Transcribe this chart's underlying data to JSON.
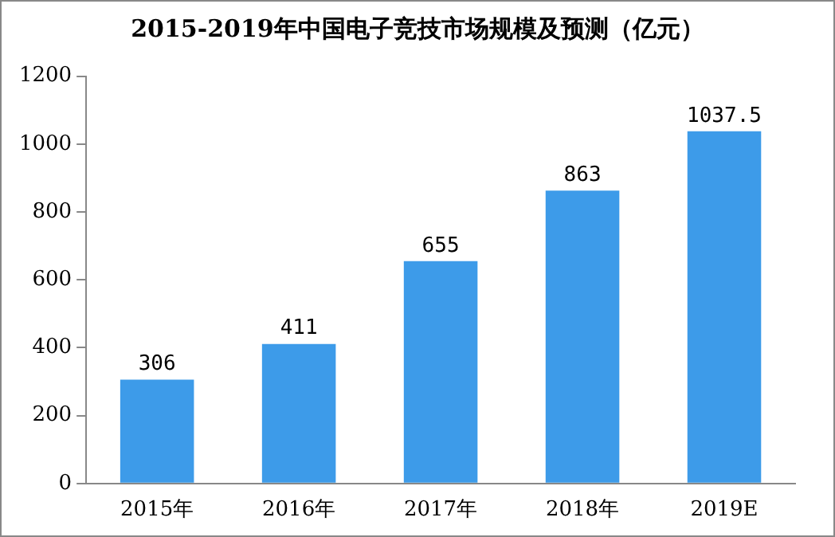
{
  "chart_data": {
    "type": "bar",
    "title": "2015-2019年中国电子竞技市场规模及预测（亿元）",
    "categories": [
      "2015年",
      "2016年",
      "2017年",
      "2018年",
      "2019E"
    ],
    "values": [
      306,
      411,
      655,
      863,
      1037.5
    ],
    "color": "#3d9be9",
    "ylim": [
      0,
      1200
    ],
    "yticks": [
      0,
      200,
      400,
      600,
      800,
      1000,
      1200
    ],
    "grid": false,
    "data_labels": true,
    "legend": false
  }
}
